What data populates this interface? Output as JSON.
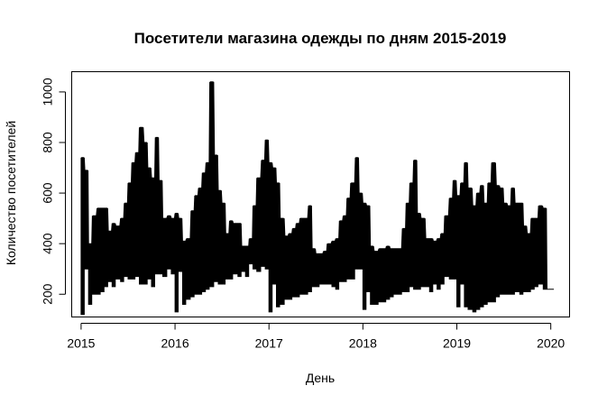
{
  "chart_data": {
    "type": "line",
    "title": "Посетители магазина одежды по дням 2015-2019",
    "xlabel": "День",
    "ylabel": "Количество посетителей",
    "xlim": [
      2014.9,
      2020.2
    ],
    "ylim": [
      110,
      1080
    ],
    "x_ticks": [
      2015,
      2016,
      2017,
      2018,
      2019,
      2020
    ],
    "x_tick_labels": [
      "2015",
      "2016",
      "2017",
      "2018",
      "2019",
      "2020"
    ],
    "y_ticks": [
      200,
      400,
      600,
      800,
      1000
    ],
    "y_tick_labels": [
      "200",
      "400",
      "600",
      "800",
      "1000"
    ],
    "grid": false,
    "legend": "none",
    "series": [
      {
        "values_note_omitted": null,
        "x": [
          2015.0,
          2015.04,
          2015.08,
          2015.12,
          2015.17,
          2015.21,
          2015.25,
          2015.29,
          2015.33,
          2015.37,
          2015.42,
          2015.46,
          2015.5,
          2015.54,
          2015.58,
          2015.62,
          2015.67,
          2015.71,
          2015.75,
          2015.79,
          2015.83,
          2015.87,
          2015.92,
          2015.96,
          2016.0,
          2016.04,
          2016.08,
          2016.12,
          2016.17,
          2016.21,
          2016.25,
          2016.29,
          2016.33,
          2016.37,
          2016.42,
          2016.46,
          2016.5,
          2016.54,
          2016.58,
          2016.62,
          2016.67,
          2016.71,
          2016.75,
          2016.79,
          2016.83,
          2016.87,
          2016.92,
          2016.96,
          2017.0,
          2017.04,
          2017.08,
          2017.12,
          2017.17,
          2017.21,
          2017.25,
          2017.29,
          2017.33,
          2017.37,
          2017.42,
          2017.46,
          2017.5,
          2017.54,
          2017.58,
          2017.62,
          2017.67,
          2017.71,
          2017.75,
          2017.79,
          2017.83,
          2017.87,
          2017.92,
          2017.96,
          2018.0,
          2018.04,
          2018.08,
          2018.12,
          2018.17,
          2018.21,
          2018.25,
          2018.29,
          2018.33,
          2018.37,
          2018.42,
          2018.46,
          2018.5,
          2018.54,
          2018.58,
          2018.62,
          2018.67,
          2018.71,
          2018.75,
          2018.79,
          2018.83,
          2018.87,
          2018.92,
          2018.96,
          2019.0,
          2019.04,
          2019.08,
          2019.12,
          2019.17,
          2019.21,
          2019.25,
          2019.29,
          2019.33,
          2019.37,
          2019.42,
          2019.46,
          2019.5,
          2019.54,
          2019.58,
          2019.62,
          2019.67,
          2019.71,
          2019.75,
          2019.79,
          2019.83,
          2019.87,
          2019.92,
          2019.96,
          2020.0
        ],
        "low": [
          120,
          300,
          160,
          200,
          200,
          210,
          230,
          250,
          230,
          260,
          250,
          270,
          260,
          260,
          270,
          240,
          240,
          260,
          230,
          280,
          280,
          270,
          300,
          280,
          130,
          290,
          160,
          180,
          190,
          200,
          200,
          210,
          220,
          230,
          250,
          240,
          240,
          260,
          260,
          280,
          270,
          290,
          270,
          320,
          300,
          290,
          310,
          300,
          130,
          240,
          150,
          160,
          180,
          180,
          190,
          190,
          200,
          200,
          210,
          230,
          230,
          240,
          240,
          240,
          230,
          220,
          250,
          250,
          260,
          260,
          300,
          300,
          140,
          210,
          160,
          160,
          170,
          170,
          180,
          190,
          200,
          200,
          210,
          210,
          230,
          220,
          220,
          230,
          230,
          210,
          240,
          220,
          240,
          270,
          260,
          260,
          150,
          240,
          150,
          140,
          130,
          140,
          150,
          160,
          170,
          170,
          190,
          200,
          200,
          200,
          200,
          210,
          200,
          210,
          210,
          220,
          230,
          240,
          220,
          220,
          220
        ],
        "high": [
          740,
          690,
          400,
          510,
          540,
          540,
          540,
          450,
          480,
          470,
          500,
          560,
          640,
          720,
          760,
          860,
          800,
          700,
          660,
          820,
          650,
          500,
          510,
          500,
          520,
          500,
          410,
          420,
          530,
          590,
          620,
          680,
          720,
          1040,
          750,
          610,
          560,
          440,
          490,
          480,
          480,
          390,
          390,
          420,
          550,
          660,
          730,
          810,
          720,
          700,
          640,
          500,
          430,
          440,
          460,
          480,
          500,
          500,
          550,
          380,
          360,
          360,
          370,
          400,
          410,
          420,
          490,
          510,
          580,
          640,
          740,
          600,
          560,
          550,
          390,
          370,
          380,
          380,
          390,
          380,
          380,
          380,
          460,
          560,
          640,
          730,
          520,
          500,
          420,
          420,
          410,
          420,
          440,
          510,
          580,
          650,
          590,
          640,
          720,
          620,
          550,
          600,
          630,
          560,
          640,
          720,
          630,
          620,
          560,
          550,
          620,
          560,
          560,
          470,
          440,
          500,
          500,
          550,
          540,
          220,
          220
        ]
      }
    ]
  }
}
